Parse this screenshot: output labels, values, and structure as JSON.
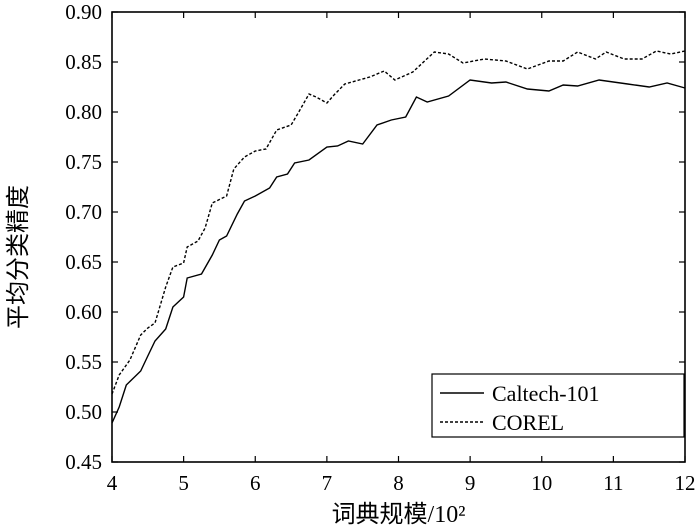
{
  "chart_data": {
    "type": "line",
    "xlabel": "词典规模/10²",
    "ylabel": "平均分类精度",
    "xlim": [
      4,
      12
    ],
    "ylim": [
      0.45,
      0.9
    ],
    "x_ticks": [
      "4",
      "5",
      "6",
      "7",
      "8",
      "9",
      "10",
      "11",
      "12"
    ],
    "y_ticks": [
      "0.45",
      "0.50",
      "0.55",
      "0.60",
      "0.65",
      "0.70",
      "0.75",
      "0.80",
      "0.85",
      "0.90"
    ],
    "legend_position": "bottom-right",
    "grid": false,
    "series": [
      {
        "name": "Caltech-101",
        "style": "solid",
        "color": "#000000",
        "points": [
          [
            4.0,
            0.489
          ],
          [
            4.1,
            0.505
          ],
          [
            4.2,
            0.527
          ],
          [
            4.4,
            0.541
          ],
          [
            4.5,
            0.556
          ],
          [
            4.6,
            0.571
          ],
          [
            4.75,
            0.583
          ],
          [
            4.85,
            0.605
          ],
          [
            5.0,
            0.615
          ],
          [
            5.05,
            0.634
          ],
          [
            5.25,
            0.638
          ],
          [
            5.4,
            0.657
          ],
          [
            5.5,
            0.672
          ],
          [
            5.6,
            0.676
          ],
          [
            5.75,
            0.698
          ],
          [
            5.85,
            0.711
          ],
          [
            6.0,
            0.716
          ],
          [
            6.2,
            0.724
          ],
          [
            6.3,
            0.735
          ],
          [
            6.45,
            0.738
          ],
          [
            6.55,
            0.749
          ],
          [
            6.75,
            0.752
          ],
          [
            7.0,
            0.765
          ],
          [
            7.15,
            0.766
          ],
          [
            7.3,
            0.771
          ],
          [
            7.5,
            0.768
          ],
          [
            7.7,
            0.787
          ],
          [
            7.9,
            0.792
          ],
          [
            8.1,
            0.795
          ],
          [
            8.25,
            0.815
          ],
          [
            8.4,
            0.81
          ],
          [
            8.7,
            0.816
          ],
          [
            9.0,
            0.832
          ],
          [
            9.3,
            0.829
          ],
          [
            9.5,
            0.83
          ],
          [
            9.8,
            0.823
          ],
          [
            10.1,
            0.821
          ],
          [
            10.3,
            0.827
          ],
          [
            10.5,
            0.826
          ],
          [
            10.8,
            0.832
          ],
          [
            11.2,
            0.828
          ],
          [
            11.5,
            0.825
          ],
          [
            11.75,
            0.829
          ],
          [
            12.0,
            0.824
          ]
        ]
      },
      {
        "name": "COREL",
        "style": "dashed",
        "color": "#000000",
        "points": [
          [
            4.0,
            0.518
          ],
          [
            4.1,
            0.537
          ],
          [
            4.25,
            0.552
          ],
          [
            4.4,
            0.577
          ],
          [
            4.5,
            0.584
          ],
          [
            4.6,
            0.589
          ],
          [
            4.75,
            0.625
          ],
          [
            4.85,
            0.645
          ],
          [
            5.0,
            0.649
          ],
          [
            5.05,
            0.665
          ],
          [
            5.2,
            0.671
          ],
          [
            5.3,
            0.684
          ],
          [
            5.4,
            0.709
          ],
          [
            5.6,
            0.716
          ],
          [
            5.7,
            0.743
          ],
          [
            5.85,
            0.755
          ],
          [
            6.0,
            0.761
          ],
          [
            6.15,
            0.763
          ],
          [
            6.3,
            0.782
          ],
          [
            6.5,
            0.787
          ],
          [
            6.6,
            0.799
          ],
          [
            6.75,
            0.818
          ],
          [
            6.85,
            0.815
          ],
          [
            7.0,
            0.809
          ],
          [
            7.1,
            0.817
          ],
          [
            7.25,
            0.828
          ],
          [
            7.45,
            0.832
          ],
          [
            7.6,
            0.835
          ],
          [
            7.8,
            0.841
          ],
          [
            7.95,
            0.832
          ],
          [
            8.2,
            0.84
          ],
          [
            8.5,
            0.86
          ],
          [
            8.7,
            0.858
          ],
          [
            8.9,
            0.849
          ],
          [
            9.2,
            0.853
          ],
          [
            9.5,
            0.851
          ],
          [
            9.8,
            0.843
          ],
          [
            10.1,
            0.851
          ],
          [
            10.3,
            0.851
          ],
          [
            10.5,
            0.86
          ],
          [
            10.75,
            0.853
          ],
          [
            10.9,
            0.86
          ],
          [
            11.15,
            0.853
          ],
          [
            11.4,
            0.853
          ],
          [
            11.6,
            0.861
          ],
          [
            11.8,
            0.858
          ],
          [
            12.0,
            0.861
          ]
        ]
      }
    ]
  }
}
